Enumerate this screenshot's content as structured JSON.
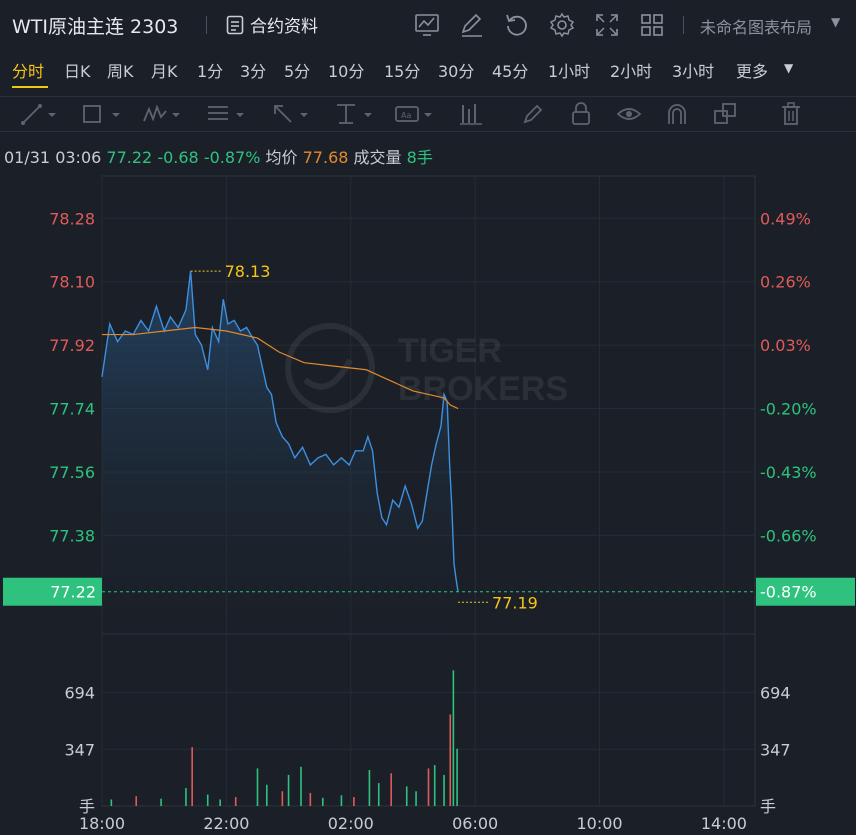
{
  "header": {
    "symbol": "WTI原油主连 2303",
    "contract_label": "合约资料",
    "layout_name": "未命名图表布局",
    "icons": [
      "chart-settings-icon",
      "edit-icon",
      "refresh-icon",
      "settings-icon",
      "fullscreen-icon",
      "layout-grid-icon"
    ]
  },
  "intervals": {
    "items": [
      "分时",
      "日K",
      "周K",
      "月K",
      "1分",
      "3分",
      "5分",
      "10分",
      "15分",
      "30分",
      "45分",
      "1小时",
      "2小时",
      "3小时",
      "更多"
    ],
    "active": "分时"
  },
  "drawing_tools": [
    "line-tool-icon",
    "rectangle-tool-icon",
    "wave-tool-icon",
    "fib-tool-icon",
    "arrow-tool-icon",
    "measure-tool-icon",
    "text-tool-icon",
    "bars-tool-icon",
    "pen-icon",
    "lock-icon",
    "eye-icon",
    "magnet-icon",
    "clone-icon",
    "trash-icon"
  ],
  "info": {
    "datetime": "01/31 03:06",
    "price": "77.22",
    "change": "-0.68",
    "change_pct": "-0.87%",
    "avg_label": "均价",
    "avg_value": "77.68",
    "volume_label": "成交量",
    "volume_value": "8手"
  },
  "watermark": [
    "TIGER",
    "BROKERS"
  ],
  "colors": {
    "up": "#e05a5a",
    "down": "#2ec27e",
    "price_line": "#3d8fe0",
    "avg_line": "#e08a2c",
    "highlight": "#f5c518",
    "current_tag": "#2ec27e"
  },
  "chart_data": {
    "type": "line",
    "xlabel_ticks": [
      "18:00",
      "22:00",
      "02:00",
      "06:00",
      "10:00",
      "14:00"
    ],
    "price_axis_left": [
      "78.28",
      "78.10",
      "77.92",
      "77.74",
      "77.56",
      "77.38"
    ],
    "price_axis_right": [
      "0.49%",
      "0.26%",
      "0.03%",
      "-0.20%",
      "-0.43%",
      "-0.66%"
    ],
    "current_price": "77.22",
    "current_pct": "-0.87%",
    "high_label": "78.13",
    "low_label": "77.19",
    "ylim": [
      77.1,
      78.4
    ],
    "volume_ticks": [
      "694",
      "347"
    ],
    "volume_unit": "手",
    "volume_ylim": [
      0,
      1040
    ],
    "x_hours_range": [
      0,
      21
    ],
    "price_series": [
      [
        0.0,
        77.83
      ],
      [
        0.25,
        77.98
      ],
      [
        0.5,
        77.93
      ],
      [
        0.75,
        77.96
      ],
      [
        1.0,
        77.95
      ],
      [
        1.25,
        77.99
      ],
      [
        1.5,
        77.96
      ],
      [
        1.75,
        78.03
      ],
      [
        2.0,
        77.96
      ],
      [
        2.2,
        78.0
      ],
      [
        2.45,
        77.97
      ],
      [
        2.7,
        78.02
      ],
      [
        2.85,
        78.13
      ],
      [
        3.0,
        77.95
      ],
      [
        3.2,
        77.92
      ],
      [
        3.4,
        77.85
      ],
      [
        3.55,
        77.97
      ],
      [
        3.75,
        77.93
      ],
      [
        3.9,
        78.05
      ],
      [
        4.05,
        77.98
      ],
      [
        4.25,
        77.99
      ],
      [
        4.45,
        77.96
      ],
      [
        4.65,
        77.97
      ],
      [
        4.85,
        77.94
      ],
      [
        5.0,
        77.92
      ],
      [
        5.15,
        77.86
      ],
      [
        5.3,
        77.8
      ],
      [
        5.45,
        77.78
      ],
      [
        5.6,
        77.7
      ],
      [
        5.8,
        77.66
      ],
      [
        6.0,
        77.64
      ],
      [
        6.2,
        77.6
      ],
      [
        6.45,
        77.63
      ],
      [
        6.7,
        77.58
      ],
      [
        6.95,
        77.6
      ],
      [
        7.2,
        77.61
      ],
      [
        7.45,
        77.58
      ],
      [
        7.7,
        77.6
      ],
      [
        7.95,
        77.58
      ],
      [
        8.15,
        77.62
      ],
      [
        8.4,
        77.62
      ],
      [
        8.55,
        77.66
      ],
      [
        8.7,
        77.62
      ],
      [
        8.85,
        77.5
      ],
      [
        9.0,
        77.43
      ],
      [
        9.15,
        77.41
      ],
      [
        9.35,
        77.48
      ],
      [
        9.55,
        77.46
      ],
      [
        9.75,
        77.52
      ],
      [
        9.95,
        77.47
      ],
      [
        10.15,
        77.4
      ],
      [
        10.3,
        77.42
      ],
      [
        10.45,
        77.5
      ],
      [
        10.6,
        77.58
      ],
      [
        10.75,
        77.64
      ],
      [
        10.9,
        77.69
      ],
      [
        11.0,
        77.78
      ],
      [
        11.1,
        77.76
      ],
      [
        11.18,
        77.58
      ],
      [
        11.25,
        77.46
      ],
      [
        11.32,
        77.3
      ],
      [
        11.38,
        77.26
      ],
      [
        11.45,
        77.22
      ]
    ],
    "avg_series": [
      [
        0.0,
        77.95
      ],
      [
        1.0,
        77.95
      ],
      [
        2.0,
        77.96
      ],
      [
        3.0,
        77.97
      ],
      [
        4.0,
        77.96
      ],
      [
        5.0,
        77.94
      ],
      [
        5.7,
        77.9
      ],
      [
        6.5,
        77.87
      ],
      [
        7.5,
        77.86
      ],
      [
        8.5,
        77.85
      ],
      [
        9.0,
        77.83
      ],
      [
        9.5,
        77.81
      ],
      [
        10.0,
        77.79
      ],
      [
        10.5,
        77.78
      ],
      [
        11.0,
        77.77
      ],
      [
        11.2,
        77.75
      ],
      [
        11.45,
        77.74
      ]
    ],
    "volume_series": [
      [
        0.3,
        40
      ],
      [
        1.1,
        60
      ],
      [
        1.9,
        45
      ],
      [
        2.7,
        110
      ],
      [
        2.9,
        360
      ],
      [
        3.4,
        70
      ],
      [
        3.8,
        40
      ],
      [
        4.3,
        55
      ],
      [
        5.0,
        230
      ],
      [
        5.3,
        130
      ],
      [
        5.8,
        90
      ],
      [
        6.0,
        190
      ],
      [
        6.4,
        240
      ],
      [
        6.7,
        80
      ],
      [
        7.1,
        50
      ],
      [
        7.7,
        65
      ],
      [
        8.1,
        55
      ],
      [
        8.6,
        220
      ],
      [
        8.9,
        140
      ],
      [
        9.3,
        200
      ],
      [
        9.8,
        120
      ],
      [
        10.1,
        90
      ],
      [
        10.5,
        230
      ],
      [
        10.7,
        250
      ],
      [
        11.0,
        190
      ],
      [
        11.2,
        560
      ],
      [
        11.3,
        830
      ],
      [
        11.42,
        350
      ]
    ]
  }
}
